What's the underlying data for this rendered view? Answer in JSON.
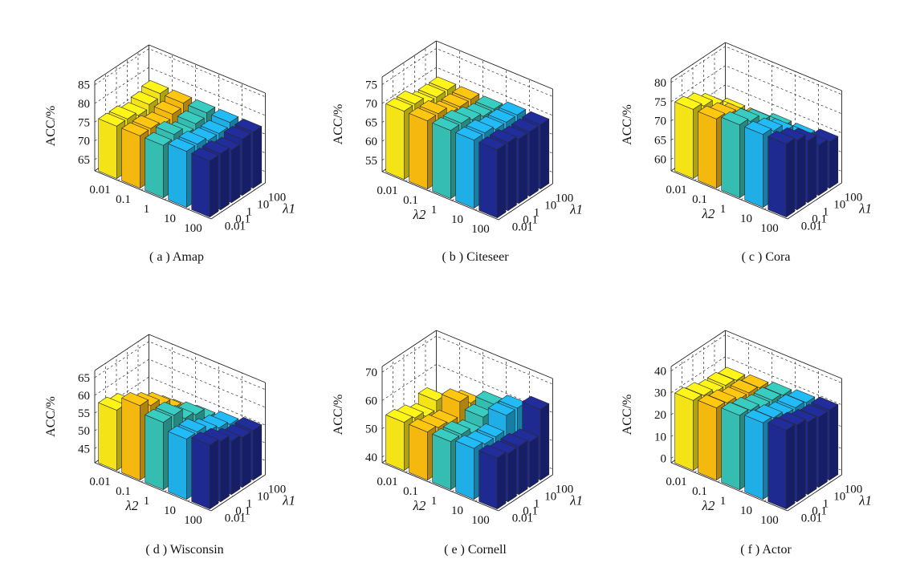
{
  "colors": {
    "lambda2_series": [
      "#F3E317",
      "#F5B80F",
      "#35BDB2",
      "#1FAEE5",
      "#1E2A8F"
    ],
    "edge": "#2a2a2a"
  },
  "chart_data": [
    {
      "type": "bar3d",
      "caption": "( a ) Amap",
      "zlabel": "ACC/%",
      "xlabel": "",
      "ylabel": "λ1",
      "zlim": [
        62,
        86
      ],
      "zticks": [
        "65",
        "70",
        "75",
        "80",
        "85"
      ],
      "xticks": [
        "0.01",
        "0.1",
        "1",
        "10",
        "100"
      ],
      "yticks": [
        "0.01",
        "0.1",
        "1",
        "10",
        "100"
      ],
      "values": [
        [
          76,
          76,
          76,
          77,
          77
        ],
        [
          76,
          76,
          77,
          77,
          77
        ],
        [
          75,
          75,
          75,
          76,
          76
        ],
        [
          76,
          76,
          76,
          76,
          77
        ],
        [
          77,
          77,
          77,
          77,
          77
        ]
      ]
    },
    {
      "type": "bar3d",
      "caption": "( b ) Citeseer",
      "zlabel": "ACC/%",
      "xlabel": "λ2",
      "ylabel": "λ1",
      "zlim": [
        52,
        77
      ],
      "zticks": [
        "55",
        "60",
        "65",
        "70",
        "75"
      ],
      "xticks": [
        "0.01",
        "0.1",
        "1",
        "10",
        "100"
      ],
      "yticks": [
        "0.01",
        "0.1",
        "1",
        "10",
        "100"
      ],
      "values": [
        [
          70,
          70,
          70,
          70,
          70
        ],
        [
          70,
          70,
          70,
          70,
          70
        ],
        [
          68,
          68,
          69,
          69,
          69
        ],
        [
          68,
          68,
          68,
          69,
          69
        ],
        [
          68,
          68,
          68,
          69,
          69
        ]
      ]
    },
    {
      "type": "bar3d",
      "caption": "( c ) Cora",
      "zlabel": "ACC/%",
      "xlabel": "λ2",
      "ylabel": "λ1",
      "zlim": [
        57,
        81
      ],
      "zticks": [
        "60",
        "65",
        "70",
        "75",
        "80"
      ],
      "xticks": [
        "0.01",
        "0.1",
        "1",
        "10",
        "100"
      ],
      "yticks": [
        "0.01",
        "0.1",
        "1",
        "10",
        "100"
      ],
      "values": [
        [
          75,
          75,
          76,
          76,
          76
        ],
        [
          74,
          74,
          75,
          75,
          75
        ],
        [
          72,
          72,
          73,
          73,
          73
        ],
        [
          69,
          69,
          70,
          70,
          70
        ],
        [
          67,
          67,
          68,
          68,
          69
        ]
      ]
    },
    {
      "type": "bar3d",
      "caption": "( d ) Wisconsin",
      "zlabel": "ACC/%",
      "xlabel": "λ2",
      "ylabel": "λ1",
      "zlim": [
        41,
        67
      ],
      "zticks": [
        "45",
        "50",
        "55",
        "60",
        "65"
      ],
      "xticks": [
        "0.01",
        "0.1",
        "1",
        "10",
        "100"
      ],
      "yticks": [
        "0.01",
        "0.1",
        "1",
        "10",
        "100"
      ],
      "values": [
        [
          58,
          62,
          60,
          58,
          59
        ],
        [
          57,
          60,
          60,
          58,
          58
        ],
        [
          54,
          58,
          57,
          56,
          56
        ],
        [
          52,
          55,
          56,
          55,
          55
        ],
        [
          50,
          52,
          53,
          54,
          55
        ]
      ]
    },
    {
      "type": "bar3d",
      "caption": "( e ) Cornell",
      "zlabel": "ACC/%",
      "xlabel": "λ2",
      "ylabel": "λ1",
      "zlim": [
        38,
        72
      ],
      "zticks": [
        "40",
        "50",
        "60",
        "70"
      ],
      "xticks": [
        "0.01",
        "0.1",
        "1",
        "10",
        "100"
      ],
      "yticks": [
        "0.01",
        "0.1",
        "1",
        "10",
        "100"
      ],
      "values": [
        [
          55,
          55,
          55,
          56,
          56
        ],
        [
          54,
          54,
          55,
          55,
          55
        ],
        [
          52,
          53,
          53,
          55,
          55
        ],
        [
          55,
          58,
          56,
          60,
          54
        ],
        [
          48,
          55,
          58,
          60,
          63
        ]
      ]
    },
    {
      "type": "bar3d",
      "caption": "( f ) Actor",
      "zlabel": "ACC/%",
      "xlabel": "λ2",
      "ylabel": "λ1",
      "zlim": [
        -2,
        42
      ],
      "zticks": [
        "0",
        "10",
        "20",
        "30",
        "40"
      ],
      "xticks": [
        "0.01",
        "0.1",
        "1",
        "10",
        "100"
      ],
      "yticks": [
        "0.01",
        "0.1",
        "1",
        "10",
        "100"
      ],
      "values": [
        [
          30,
          31,
          32,
          33,
          34
        ],
        [
          29,
          30,
          31,
          32,
          33
        ],
        [
          27,
          28,
          29,
          30,
          31
        ],
        [
          27,
          28,
          29,
          30,
          30
        ],
        [
          26,
          27,
          28,
          29,
          30
        ]
      ]
    }
  ]
}
